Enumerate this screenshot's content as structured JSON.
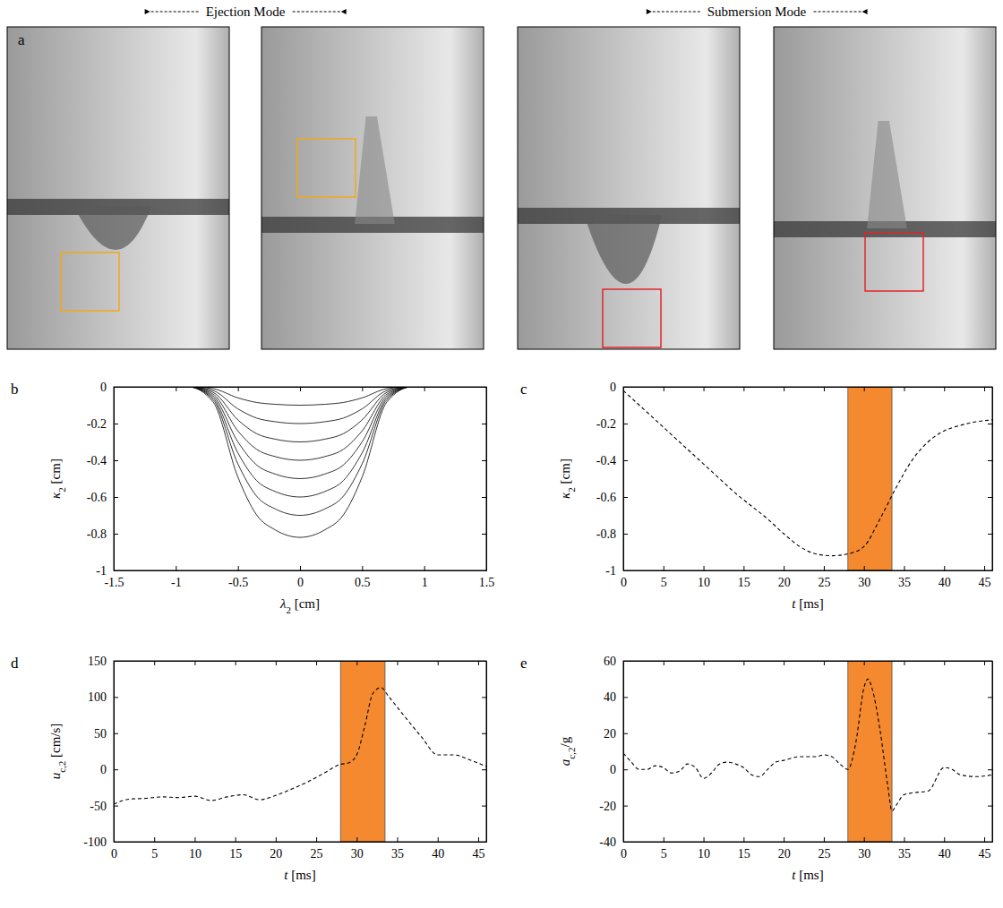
{
  "panel_a": {
    "label": "a",
    "modes": [
      "Ejection Mode",
      "Submersion Mode"
    ]
  },
  "chart_data": [
    {
      "type": "line",
      "panel": "b",
      "x_label": {
        "text": "λ",
        "sub": "2",
        "after": " [cm]"
      },
      "y_label": {
        "text": "κ",
        "sub": "2",
        "after": " [cm]"
      },
      "xlim": [
        -1.5,
        1.5
      ],
      "xticks": [
        -1.5,
        -1,
        -0.5,
        0,
        0.5,
        1,
        1.5
      ],
      "ylim": [
        -1,
        0
      ],
      "yticks": [
        -1,
        -0.8,
        -0.6,
        -0.4,
        -0.2,
        0
      ],
      "line_style": "solid",
      "color": "#000000",
      "x": [
        -1.2,
        -0.9,
        -0.7,
        -0.5,
        -0.35,
        -0.2,
        0,
        0.2,
        0.35,
        0.5,
        0.7,
        0.9,
        1.05
      ],
      "series": [
        {
          "values": [
            0,
            0,
            -0.01,
            -0.06,
            -0.085,
            -0.095,
            -0.1,
            -0.095,
            -0.085,
            -0.06,
            -0.01,
            0,
            0
          ]
        },
        {
          "values": [
            0,
            0,
            -0.02,
            -0.12,
            -0.17,
            -0.19,
            -0.2,
            -0.19,
            -0.17,
            -0.12,
            -0.02,
            0,
            0
          ]
        },
        {
          "values": [
            0,
            0,
            -0.03,
            -0.18,
            -0.255,
            -0.285,
            -0.3,
            -0.285,
            -0.255,
            -0.18,
            -0.03,
            0,
            0
          ]
        },
        {
          "values": [
            0,
            0,
            -0.04,
            -0.24,
            -0.34,
            -0.38,
            -0.4,
            -0.38,
            -0.34,
            -0.24,
            -0.04,
            0,
            0
          ]
        },
        {
          "values": [
            0,
            0,
            -0.05,
            -0.3,
            -0.425,
            -0.475,
            -0.5,
            -0.475,
            -0.425,
            -0.3,
            -0.05,
            0,
            0
          ]
        },
        {
          "values": [
            0,
            0,
            -0.06,
            -0.36,
            -0.51,
            -0.57,
            -0.6,
            -0.57,
            -0.51,
            -0.36,
            -0.06,
            0,
            0
          ]
        },
        {
          "values": [
            0,
            0,
            -0.07,
            -0.42,
            -0.595,
            -0.665,
            -0.7,
            -0.665,
            -0.595,
            -0.42,
            -0.07,
            0,
            0
          ]
        },
        {
          "values": [
            0,
            0,
            -0.082,
            -0.492,
            -0.697,
            -0.779,
            -0.82,
            -0.779,
            -0.697,
            -0.492,
            -0.082,
            0,
            0
          ]
        }
      ]
    },
    {
      "type": "line",
      "panel": "c",
      "x_label": {
        "text": "t",
        "after": " [ms]"
      },
      "y_label": {
        "text": "κ",
        "sub": "2",
        "after": " [cm]"
      },
      "xlim": [
        0,
        46
      ],
      "xticks": [
        0,
        5,
        10,
        15,
        20,
        25,
        30,
        35,
        40,
        45
      ],
      "ylim": [
        -1,
        0
      ],
      "yticks": [
        -1,
        -0.8,
        -0.6,
        -0.4,
        -0.2,
        0
      ],
      "line_style": "dashed",
      "highlight": {
        "range": [
          28,
          33.5
        ],
        "color": "#f4892f"
      },
      "x": [
        0,
        2,
        4,
        6,
        8,
        10,
        12,
        14,
        16,
        18,
        20,
        22,
        24,
        26,
        28,
        30,
        32,
        34,
        36,
        38,
        40,
        42,
        44,
        46
      ],
      "series": [
        {
          "color": "#000000",
          "values": [
            -0.02,
            -0.1,
            -0.18,
            -0.26,
            -0.34,
            -0.42,
            -0.5,
            -0.58,
            -0.65,
            -0.72,
            -0.8,
            -0.87,
            -0.91,
            -0.92,
            -0.91,
            -0.87,
            -0.72,
            -0.55,
            -0.4,
            -0.3,
            -0.24,
            -0.21,
            -0.19,
            -0.18
          ]
        }
      ]
    },
    {
      "type": "line",
      "panel": "d",
      "x_label": {
        "text": "t",
        "after": " [ms]"
      },
      "y_label": {
        "text": "u",
        "sub": "c,2",
        "after": " [cm/s]"
      },
      "xlim": [
        0,
        46
      ],
      "xticks": [
        0,
        5,
        10,
        15,
        20,
        25,
        30,
        35,
        40,
        45
      ],
      "ylim": [
        -100,
        150
      ],
      "yticks": [
        -100,
        -50,
        0,
        50,
        100,
        150
      ],
      "line_style": "dashed",
      "highlight": {
        "range": [
          28,
          33.5
        ],
        "color": "#f4892f"
      },
      "x": [
        0,
        2,
        4,
        6,
        8,
        10,
        12,
        14,
        16,
        18,
        20,
        22,
        24,
        26,
        28,
        29,
        30,
        31,
        32,
        33,
        34,
        36,
        38,
        40,
        42,
        44,
        46
      ],
      "series": [
        {
          "color": "#000000",
          "values": [
            -48,
            -41,
            -40,
            -38,
            -39,
            -37,
            -43,
            -38,
            -35,
            -42,
            -36,
            -27,
            -17,
            -5,
            7,
            9,
            20,
            60,
            105,
            113,
            100,
            72,
            45,
            20,
            20,
            13,
            4
          ]
        }
      ]
    },
    {
      "type": "line",
      "panel": "e",
      "x_label": {
        "text": "t",
        "after": " [ms]"
      },
      "y_label": {
        "text": "a",
        "sub": "c,2",
        "after": "/g"
      },
      "xlim": [
        0,
        46
      ],
      "xticks": [
        0,
        5,
        10,
        15,
        20,
        25,
        30,
        35,
        40,
        45
      ],
      "ylim": [
        -40,
        60
      ],
      "yticks": [
        -40,
        -20,
        0,
        20,
        40,
        60
      ],
      "line_style": "dashed",
      "highlight": {
        "range": [
          28,
          33.5
        ],
        "color": "#f4892f"
      },
      "x": [
        0,
        1,
        2,
        3,
        4,
        5,
        6,
        7,
        8,
        9,
        10,
        11,
        12,
        13,
        14,
        15,
        16,
        17,
        18,
        19,
        20,
        22,
        24,
        25,
        26,
        27,
        28,
        29,
        30,
        30.5,
        31,
        32,
        33,
        33.5,
        34,
        35,
        36,
        38,
        40,
        41,
        42,
        44,
        46
      ],
      "series": [
        {
          "color": "#000000",
          "values": [
            9,
            4,
            0,
            0,
            2,
            1,
            -2,
            -1,
            3,
            1,
            -5,
            -2,
            3,
            4,
            3,
            1,
            -3,
            -4,
            0,
            4,
            5,
            7,
            7,
            8,
            7,
            3,
            0,
            15,
            45,
            50,
            45,
            22,
            -10,
            -23,
            -20,
            -14,
            -13,
            -12,
            1,
            0,
            -3,
            -4,
            -3
          ]
        }
      ]
    }
  ]
}
